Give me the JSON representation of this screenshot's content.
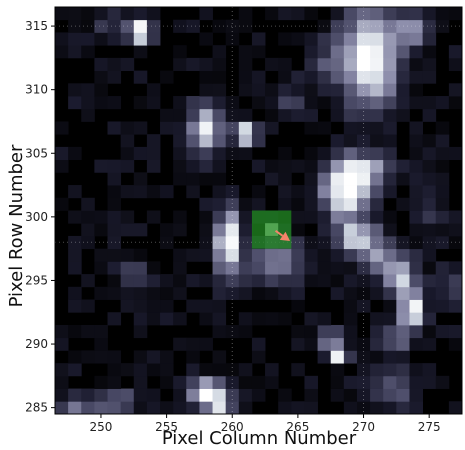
{
  "chart_data": {
    "type": "heatmap",
    "xlabel": "Pixel Column Number",
    "ylabel": "Pixel Row Number",
    "xlim": [
      246.5,
      277.5
    ],
    "ylim": [
      284.5,
      316.5
    ],
    "xticks": [
      250,
      255,
      260,
      265,
      270,
      275
    ],
    "yticks": [
      285,
      290,
      295,
      300,
      305,
      310,
      315
    ],
    "colormap": [
      "#000000",
      "#1b1b2e",
      "#4a4a66",
      "#8a8aa8",
      "#cfd6e0",
      "#ffffff"
    ],
    "background_level": 0.0,
    "sources": [
      {
        "x": 253,
        "y": 314.6,
        "sx": 0.6,
        "sy": 0.7,
        "amp": 0.95
      },
      {
        "x": 250.5,
        "y": 315.2,
        "sx": 0.8,
        "sy": 0.6,
        "amp": 0.25
      },
      {
        "x": 270.5,
        "y": 312.5,
        "sx": 1.5,
        "sy": 2.6,
        "amp": 1.0
      },
      {
        "x": 273.7,
        "y": 314.8,
        "sx": 0.8,
        "sy": 0.8,
        "amp": 0.55
      },
      {
        "x": 258.0,
        "y": 307.0,
        "sx": 0.8,
        "sy": 1.4,
        "amp": 0.85
      },
      {
        "x": 261.0,
        "y": 306.6,
        "sx": 0.6,
        "sy": 0.6,
        "amp": 0.9
      },
      {
        "x": 264.5,
        "y": 309.0,
        "sx": 0.9,
        "sy": 0.9,
        "amp": 0.25
      },
      {
        "x": 268.7,
        "y": 302.2,
        "sx": 1.3,
        "sy": 1.6,
        "amp": 1.0
      },
      {
        "x": 270.5,
        "y": 303.8,
        "sx": 1.2,
        "sy": 0.8,
        "amp": 0.55
      },
      {
        "x": 259.7,
        "y": 298.0,
        "sx": 0.7,
        "sy": 1.7,
        "amp": 1.0
      },
      {
        "x": 263.5,
        "y": 296.5,
        "sx": 1.4,
        "sy": 1.2,
        "amp": 0.55
      },
      {
        "x": 269.5,
        "y": 298.3,
        "sx": 1.1,
        "sy": 0.9,
        "amp": 0.75
      },
      {
        "x": 271.5,
        "y": 296.5,
        "sx": 1.2,
        "sy": 1.0,
        "amp": 0.5
      },
      {
        "x": 273.0,
        "y": 295.0,
        "sx": 0.8,
        "sy": 1.0,
        "amp": 0.7
      },
      {
        "x": 273.7,
        "y": 292.6,
        "sx": 0.6,
        "sy": 0.9,
        "amp": 1.0
      },
      {
        "x": 272.5,
        "y": 290.5,
        "sx": 0.8,
        "sy": 0.6,
        "amp": 0.55
      },
      {
        "x": 252.5,
        "y": 295.3,
        "sx": 0.7,
        "sy": 0.9,
        "amp": 0.35
      },
      {
        "x": 268.0,
        "y": 289.2,
        "sx": 0.5,
        "sy": 0.5,
        "amp": 0.9
      },
      {
        "x": 267.5,
        "y": 290.3,
        "sx": 0.8,
        "sy": 0.7,
        "amp": 0.35
      },
      {
        "x": 258.2,
        "y": 286.3,
        "sx": 1.0,
        "sy": 0.7,
        "amp": 0.9
      },
      {
        "x": 259.0,
        "y": 285.2,
        "sx": 0.8,
        "sy": 0.5,
        "amp": 0.7
      },
      {
        "x": 251.0,
        "y": 285.5,
        "sx": 1.2,
        "sy": 0.7,
        "amp": 0.4
      },
      {
        "x": 248.0,
        "y": 285.2,
        "sx": 0.8,
        "sy": 0.6,
        "amp": 0.5
      },
      {
        "x": 272.0,
        "y": 286.5,
        "sx": 1.4,
        "sy": 1.0,
        "amp": 0.35
      },
      {
        "x": 275.0,
        "y": 300.2,
        "sx": 1.0,
        "sy": 0.8,
        "amp": 0.25
      },
      {
        "x": 276.8,
        "y": 294.5,
        "sx": 0.8,
        "sy": 1.2,
        "amp": 0.3
      },
      {
        "x": 249.0,
        "y": 309.5,
        "sx": 0.8,
        "sy": 0.6,
        "amp": 0.15
      },
      {
        "x": 267.0,
        "y": 312.0,
        "sx": 1.0,
        "sy": 1.2,
        "amp": 0.25
      }
    ],
    "noise_amp": 0.12,
    "aperture": {
      "x": [
        262,
        264
      ],
      "y": [
        298,
        300
      ],
      "color": "#228b22",
      "opacity": 0.75
    },
    "arrow": {
      "from": [
        263.3,
        298.9
      ],
      "to": [
        264.4,
        298.1
      ],
      "color": "#f4836a"
    },
    "dotted_gridlines": {
      "x": [
        260,
        270
      ],
      "y": [
        298,
        315
      ]
    },
    "legend": "none"
  }
}
